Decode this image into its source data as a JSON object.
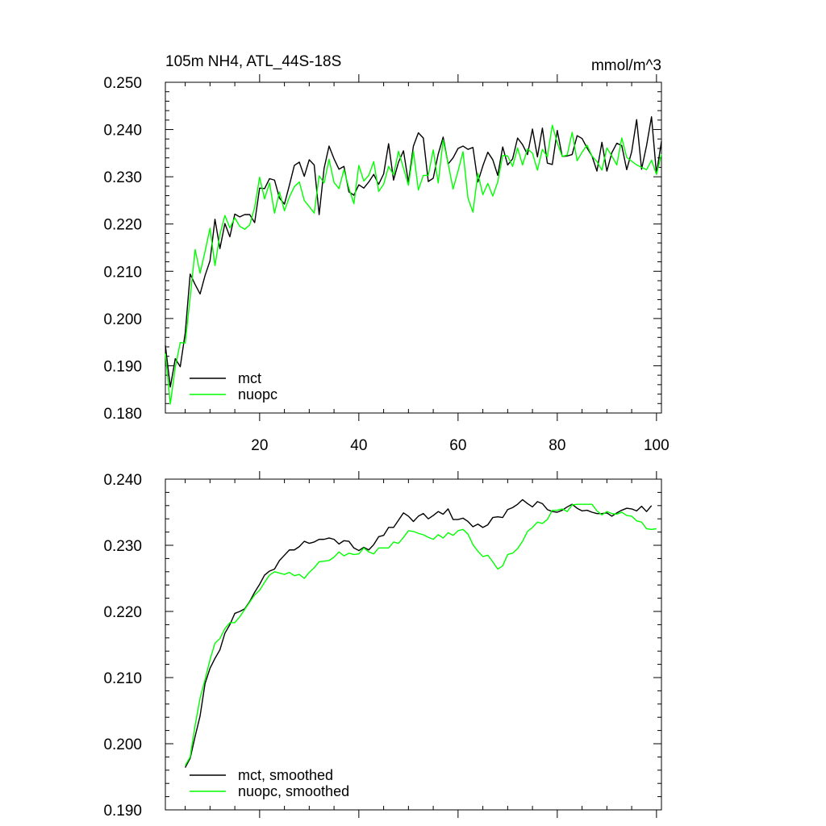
{
  "chart_data": [
    {
      "type": "line",
      "title": "105m NH4, ATL_44S-18S",
      "units": "mmol/m^3",
      "xlim": [
        1,
        101
      ],
      "ylim": [
        0.18,
        0.25
      ],
      "x_ticks": [
        20,
        40,
        60,
        80,
        100
      ],
      "y_ticks": [
        0.18,
        0.19,
        0.2,
        0.21,
        0.22,
        0.23,
        0.24,
        0.25
      ],
      "y_tick_labels": [
        "0.180",
        "0.190",
        "0.200",
        "0.210",
        "0.220",
        "0.230",
        "0.240",
        "0.250"
      ],
      "legend_position": "bottom-left",
      "x_start": 1,
      "series": [
        {
          "name": "mct",
          "color": "#000000",
          "values": [
            0.1943,
            0.1855,
            0.1915,
            0.1898,
            0.1969,
            0.2094,
            0.2072,
            0.2052,
            0.2091,
            0.2122,
            0.221,
            0.2148,
            0.2201,
            0.2173,
            0.2221,
            0.2215,
            0.222,
            0.222,
            0.2203,
            0.2276,
            0.2275,
            0.2296,
            0.2293,
            0.2255,
            0.2242,
            0.2282,
            0.2324,
            0.2331,
            0.2301,
            0.2336,
            0.2325,
            0.222,
            0.2318,
            0.2365,
            0.2338,
            0.2316,
            0.2322,
            0.2268,
            0.2261,
            0.2283,
            0.2276,
            0.2289,
            0.2305,
            0.2284,
            0.2306,
            0.237,
            0.2293,
            0.2331,
            0.2355,
            0.2288,
            0.2365,
            0.2393,
            0.2382,
            0.229,
            0.2297,
            0.2348,
            0.2384,
            0.2327,
            0.234,
            0.236,
            0.2365,
            0.2358,
            0.2362,
            0.2289,
            0.2323,
            0.2352,
            0.2336,
            0.2303,
            0.2363,
            0.2325,
            0.2338,
            0.2382,
            0.2368,
            0.2347,
            0.2401,
            0.2342,
            0.2403,
            0.2329,
            0.2326,
            0.2398,
            0.2343,
            0.2344,
            0.2347,
            0.2387,
            0.2381,
            0.2361,
            0.2344,
            0.2312,
            0.2373,
            0.2312,
            0.2351,
            0.2371,
            0.2366,
            0.2315,
            0.2353,
            0.2421,
            0.2316,
            0.2366,
            0.2427,
            0.2306,
            0.2375
          ]
        },
        {
          "name": "nuopc",
          "color": "#00ff00",
          "values": [
            0.1926,
            0.1819,
            0.1897,
            0.1949,
            0.1948,
            0.2045,
            0.2146,
            0.2096,
            0.2142,
            0.2191,
            0.2112,
            0.2178,
            0.2218,
            0.2192,
            0.2213,
            0.2195,
            0.2189,
            0.2198,
            0.2235,
            0.2299,
            0.2253,
            0.2287,
            0.2223,
            0.2268,
            0.2228,
            0.2257,
            0.2279,
            0.2289,
            0.225,
            0.2237,
            0.2223,
            0.2302,
            0.2287,
            0.2337,
            0.2288,
            0.2275,
            0.2315,
            0.2276,
            0.2243,
            0.2324,
            0.2291,
            0.2303,
            0.2332,
            0.2269,
            0.2284,
            0.2322,
            0.2304,
            0.2354,
            0.2318,
            0.2282,
            0.2354,
            0.2272,
            0.2303,
            0.2303,
            0.2357,
            0.2287,
            0.2378,
            0.2328,
            0.2274,
            0.2312,
            0.2353,
            0.2255,
            0.2225,
            0.2307,
            0.2262,
            0.2286,
            0.2259,
            0.2289,
            0.2345,
            0.2344,
            0.2322,
            0.2361,
            0.2325,
            0.2359,
            0.235,
            0.2314,
            0.2358,
            0.2342,
            0.2409,
            0.2372,
            0.2343,
            0.2346,
            0.2394,
            0.2334,
            0.2352,
            0.2367,
            0.2344,
            0.2332,
            0.2314,
            0.2361,
            0.2344,
            0.2325,
            0.2382,
            0.2341,
            0.2333,
            0.2325,
            0.232,
            0.2315,
            0.2335,
            0.2305,
            0.2348
          ]
        }
      ]
    },
    {
      "type": "line",
      "title": "",
      "xlim": [
        1,
        101
      ],
      "ylim": [
        0.19,
        0.24
      ],
      "x_ticks": [
        20,
        40,
        60,
        80,
        100
      ],
      "y_ticks": [
        0.19,
        0.2,
        0.21,
        0.22,
        0.23,
        0.24
      ],
      "y_tick_labels": [
        "0.190",
        "0.200",
        "0.210",
        "0.220",
        "0.230",
        "0.240"
      ],
      "legend_position": "bottom-left",
      "x_start": 5,
      "series": [
        {
          "name": "mct, smoothed",
          "color": "#000000",
          "values": [
            0.1964,
            0.1978,
            0.2011,
            0.2042,
            0.2091,
            0.2114,
            0.2129,
            0.2142,
            0.2167,
            0.218,
            0.2197,
            0.22,
            0.2204,
            0.2215,
            0.2229,
            0.2241,
            0.2255,
            0.2261,
            0.2264,
            0.2277,
            0.2285,
            0.2293,
            0.2293,
            0.2298,
            0.2306,
            0.2303,
            0.2305,
            0.2309,
            0.2309,
            0.2311,
            0.2309,
            0.2302,
            0.2307,
            0.2306,
            0.2296,
            0.2292,
            0.2297,
            0.2293,
            0.2301,
            0.2313,
            0.2315,
            0.2327,
            0.2327,
            0.2338,
            0.2349,
            0.2344,
            0.2336,
            0.2344,
            0.2348,
            0.234,
            0.2345,
            0.2351,
            0.2347,
            0.2355,
            0.2339,
            0.2339,
            0.2341,
            0.2336,
            0.2328,
            0.2332,
            0.2327,
            0.2331,
            0.2342,
            0.2343,
            0.2342,
            0.2354,
            0.2357,
            0.2362,
            0.2369,
            0.2363,
            0.2358,
            0.2366,
            0.2363,
            0.2354,
            0.2351,
            0.235,
            0.2353,
            0.2358,
            0.2362,
            0.2356,
            0.2352,
            0.2353,
            0.235,
            0.2348,
            0.2348,
            0.2349,
            0.2344,
            0.2349,
            0.2353,
            0.2356,
            0.2355,
            0.2352,
            0.2359,
            0.2351,
            0.236
          ]
        },
        {
          "name": "nuopc, smoothed",
          "color": "#00ff00",
          "values": [
            0.1967,
            0.198,
            0.2028,
            0.2069,
            0.2097,
            0.2127,
            0.2152,
            0.2159,
            0.2174,
            0.2183,
            0.2183,
            0.2192,
            0.2203,
            0.2214,
            0.2225,
            0.2232,
            0.2244,
            0.2255,
            0.226,
            0.2258,
            0.2256,
            0.2259,
            0.2254,
            0.2256,
            0.225,
            0.2259,
            0.2266,
            0.2275,
            0.2276,
            0.2277,
            0.2282,
            0.229,
            0.2284,
            0.2288,
            0.2286,
            0.2287,
            0.2296,
            0.229,
            0.2287,
            0.2296,
            0.2296,
            0.2296,
            0.2305,
            0.2303,
            0.2312,
            0.2322,
            0.2321,
            0.2318,
            0.2316,
            0.2312,
            0.2309,
            0.2316,
            0.2311,
            0.2319,
            0.2315,
            0.2322,
            0.2324,
            0.2317,
            0.2301,
            0.2291,
            0.2283,
            0.2285,
            0.2275,
            0.2264,
            0.2269,
            0.2286,
            0.2288,
            0.2295,
            0.2306,
            0.2321,
            0.2327,
            0.2335,
            0.2333,
            0.2339,
            0.2353,
            0.2353,
            0.2355,
            0.2351,
            0.2361,
            0.2362,
            0.2362,
            0.2362,
            0.2362,
            0.2352,
            0.2346,
            0.2351,
            0.2348,
            0.2347,
            0.235,
            0.2345,
            0.2344,
            0.2337,
            0.2335,
            0.2325,
            0.2324,
            0.2325
          ]
        }
      ]
    }
  ]
}
